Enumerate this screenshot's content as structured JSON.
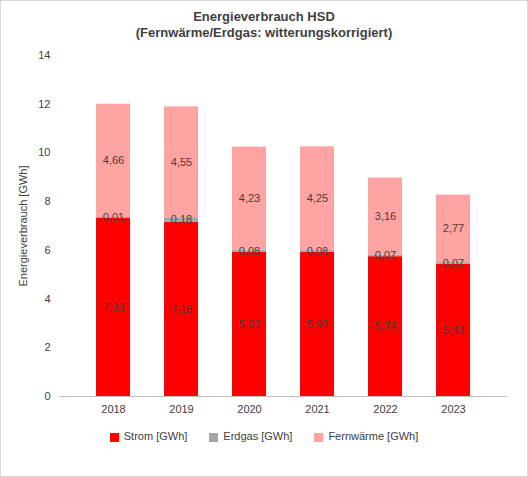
{
  "chart_data": {
    "type": "bar",
    "title": "Energieverbrauch HSD",
    "subtitle": "(Fernwärme/Erdgas: witterungskorrigiert)",
    "y_label": "Energieverbrauch [GWh]",
    "categories": [
      "2018",
      "2019",
      "2020",
      "2021",
      "2022",
      "2023"
    ],
    "series": [
      {
        "name": "Strom [GWh]",
        "color": "#ff0000",
        "values": [
          7.33,
          7.16,
          5.93,
          5.92,
          5.74,
          5.43
        ],
        "value_labels": [
          "7,33",
          "7,16",
          "5,93",
          "5,92",
          "5,74",
          "5,43"
        ]
      },
      {
        "name": "Erdgas [GWh]",
        "color": "#a6a6a6",
        "values": [
          0.01,
          0.18,
          0.08,
          0.08,
          0.07,
          0.07
        ],
        "value_labels": [
          "0,01",
          "0,18",
          "0,08",
          "0,08",
          "0,07",
          "0,07"
        ]
      },
      {
        "name": "Fernwärme [GWh]",
        "color": "#ffa3a3",
        "values": [
          4.66,
          4.55,
          4.23,
          4.25,
          3.16,
          2.77
        ],
        "value_labels": [
          "4,66",
          "4,55",
          "4,23",
          "4,25",
          "3,16",
          "2,77"
        ]
      }
    ],
    "ylim": [
      0,
      14
    ],
    "yticks": [
      0,
      2,
      4,
      6,
      8,
      10,
      12,
      14
    ],
    "stacked": true,
    "data_labels": true,
    "grid": false,
    "legend": "bottom"
  }
}
